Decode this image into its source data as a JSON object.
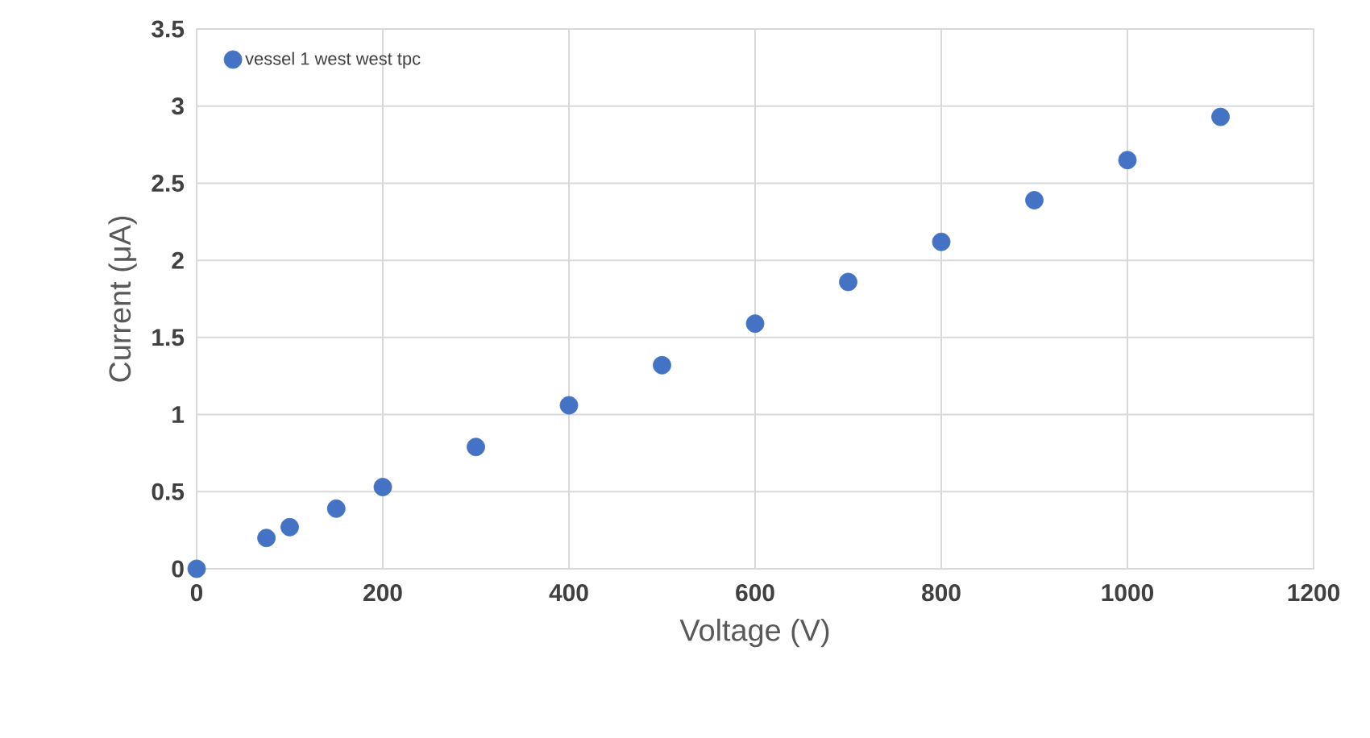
{
  "chart_data": {
    "type": "scatter",
    "xlabel": "Voltage (V)",
    "ylabel": "Current (μA)",
    "x": [
      0,
      75,
      100,
      150,
      200,
      300,
      400,
      500,
      600,
      700,
      800,
      900,
      1000,
      1100
    ],
    "series": [
      {
        "name": "vessel 1 west west tpc",
        "color": "#4472c4",
        "values": [
          0,
          0.2,
          0.27,
          0.39,
          0.53,
          0.79,
          1.06,
          1.32,
          1.59,
          1.86,
          2.12,
          2.39,
          2.65,
          2.93
        ]
      }
    ],
    "xlim": [
      0,
      1200
    ],
    "xticks": [
      0,
      200,
      400,
      600,
      800,
      1000,
      1200
    ],
    "ylim": [
      0,
      3.5
    ],
    "yticks": [
      0,
      0.5,
      1,
      1.5,
      2,
      2.5,
      3,
      3.5
    ],
    "grid": true,
    "legend": "top left",
    "marker": "circle"
  }
}
